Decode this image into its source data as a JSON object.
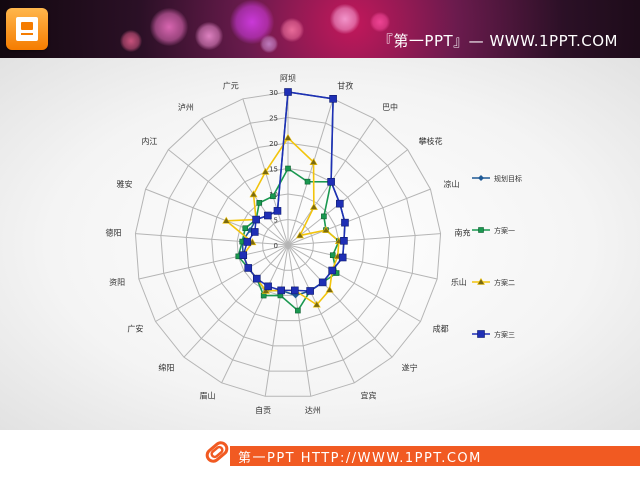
{
  "header": {
    "site_title": "『第一PPT』— WWW.1PPT.COM",
    "bokeh": [
      {
        "color": "#ff7ad0"
      },
      {
        "color": "#ff9be0"
      },
      {
        "color": "#e040fb"
      },
      {
        "color": "#ff80ab"
      },
      {
        "color": "#ffb3e6"
      },
      {
        "color": "#f06292"
      },
      {
        "color": "#ce93d8"
      },
      {
        "color": "#ff4fa3"
      }
    ]
  },
  "footer": {
    "text": "第一PPT HTTP://WWW.1PPT.COM",
    "accent": "#f15a22",
    "icon": "paperclip-icon"
  },
  "chart_data": {
    "type": "radar",
    "categories": [
      "阿坝",
      "甘孜",
      "巴中",
      "攀枝花",
      "凉山",
      "南充",
      "乐山",
      "成都",
      "遂宁",
      "宜宾",
      "达州",
      "自贡",
      "眉山",
      "绵阳",
      "广安",
      "资阳",
      "德阳",
      "雅安",
      "内江",
      "泸州",
      "广元"
    ],
    "ylim": [
      0,
      30
    ],
    "ticks": [
      0,
      5,
      10,
      15,
      20,
      25,
      30
    ],
    "grid": true,
    "legend_position": "right",
    "series": [
      {
        "name": "规划目标",
        "color": "#1f5a96",
        "marker": "diamond",
        "values": [
          30,
          30,
          15,
          13,
          12,
          11,
          11,
          10,
          10,
          10,
          10,
          9,
          10,
          9,
          9,
          9,
          9,
          8,
          8,
          7,
          7
        ]
      },
      {
        "name": "方案一",
        "color": "#1a9850",
        "marker": "square",
        "values": [
          15,
          13,
          15,
          9,
          8,
          10,
          9,
          11,
          10,
          10,
          13,
          10,
          11,
          9,
          9,
          10,
          9,
          9,
          8,
          10,
          10
        ]
      },
      {
        "name": "方案二",
        "color": "#f2c40c",
        "marker": "triangle",
        "values": [
          21,
          17,
          9,
          3,
          8,
          10,
          10,
          10,
          12,
          13,
          9,
          9,
          10,
          9,
          9,
          9,
          7,
          13,
          8,
          12,
          15
        ]
      },
      {
        "name": "方案三",
        "color": "#1f2fb5",
        "marker": "square",
        "values": [
          30,
          30,
          15,
          13,
          12,
          11,
          11,
          10,
          10,
          10,
          9,
          9,
          9,
          9,
          9,
          9,
          8,
          7,
          8,
          7,
          7
        ]
      }
    ]
  }
}
